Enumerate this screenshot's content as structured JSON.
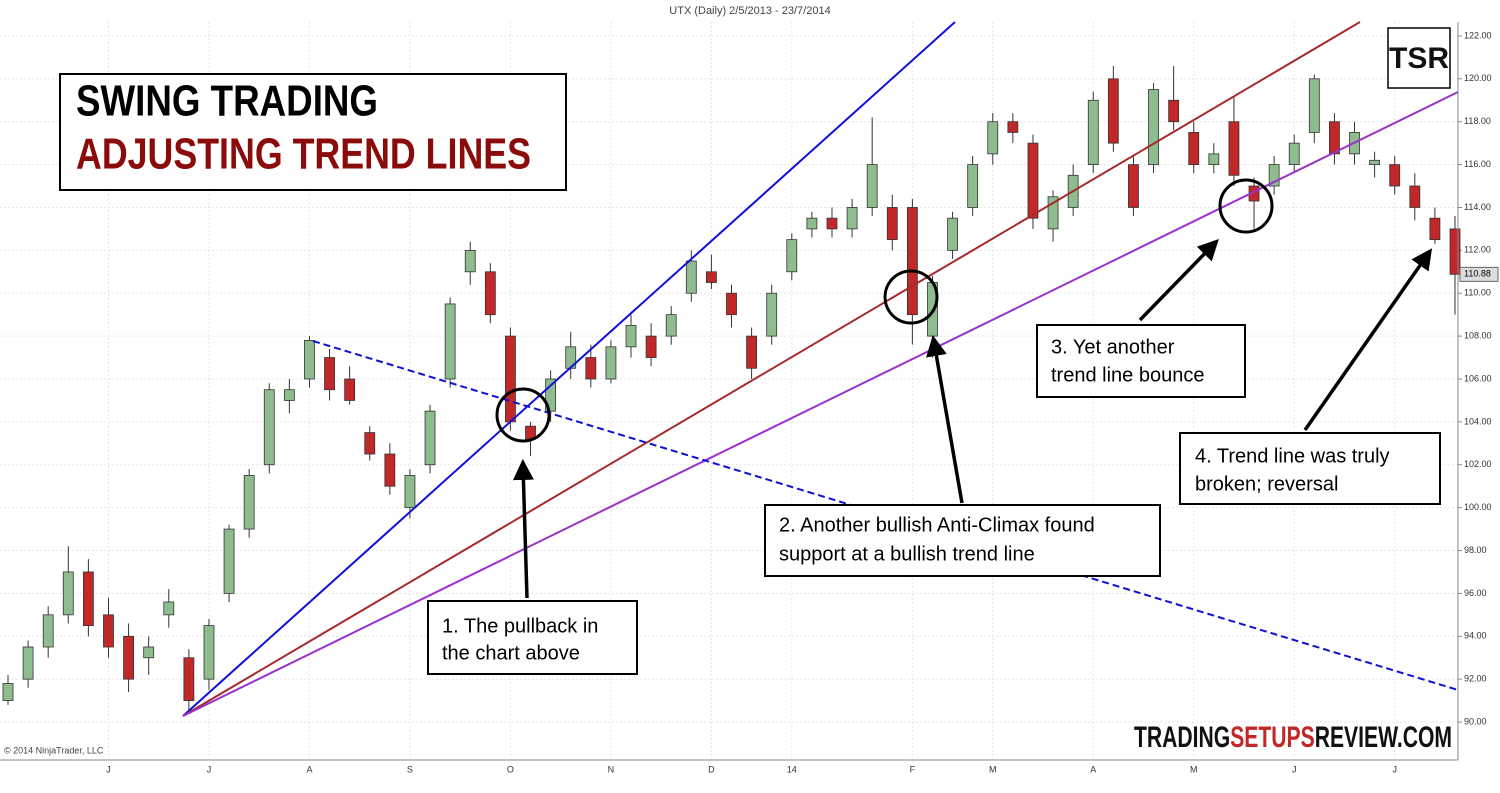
{
  "chart_data": {
    "type": "candlestick",
    "title": "UTX (Daily)  2/5/2013 - 23/7/2014",
    "headline": [
      "SWING TRADING",
      "ADJUSTING TREND LINES"
    ],
    "logo": "TSR",
    "copyright": "© 2014 NinjaTrader, LLC",
    "site": [
      {
        "text": "TRADING",
        "color": "#111111"
      },
      {
        "text": "SETUPS",
        "color": "#c0282a"
      },
      {
        "text": "REVIEW",
        "color": "#111111"
      },
      {
        "text": ".COM",
        "color": "#111111"
      }
    ],
    "annotations": [
      [
        "1. The pullback in",
        "the chart above"
      ],
      [
        "2. Another bullish Anti-Climax found",
        "support at a bullish trend line"
      ],
      [
        "3. Yet another",
        "trend line bounce"
      ],
      [
        "4. Trend line was truly",
        "broken; reversal"
      ]
    ],
    "categories": [
      null,
      null,
      null,
      null,
      null,
      "J",
      null,
      null,
      null,
      null,
      "J",
      null,
      null,
      null,
      null,
      "A",
      null,
      null,
      null,
      null,
      "S",
      null,
      null,
      null,
      null,
      "O",
      null,
      null,
      null,
      null,
      "N",
      null,
      null,
      null,
      null,
      "D",
      null,
      null,
      null,
      "14",
      null,
      null,
      null,
      null,
      null,
      "F",
      null,
      null,
      null,
      "M",
      null,
      null,
      null,
      null,
      "A",
      null,
      null,
      null,
      null,
      "M",
      null,
      null,
      null,
      null,
      "J",
      null,
      null,
      null,
      null,
      "J",
      null,
      null,
      null
    ],
    "open": [
      91,
      92,
      93.5,
      95,
      97,
      95,
      94,
      93,
      95,
      93,
      92,
      96,
      99,
      102,
      105,
      106,
      107,
      106,
      103.5,
      102.5,
      100,
      102,
      106,
      111,
      111,
      108,
      103.8,
      104.5,
      106.5,
      107,
      106,
      107.5,
      108,
      108,
      110,
      111,
      110,
      108,
      108,
      111,
      113,
      113.5,
      113,
      114,
      114,
      114,
      108,
      112,
      114,
      116.5,
      118,
      117,
      113,
      114,
      116,
      120,
      116,
      116,
      119,
      117.5,
      116,
      118,
      115,
      115,
      116,
      117.5,
      118,
      116.5,
      116,
      116,
      115,
      113.5,
      113
    ],
    "high": [
      92.2,
      93.8,
      95.4,
      98.2,
      97.6,
      95.8,
      94.6,
      94,
      96.2,
      93.4,
      94.8,
      99.2,
      101.8,
      105.8,
      106,
      108,
      107.4,
      106.6,
      103.8,
      103,
      101.8,
      104.8,
      109.8,
      112.4,
      111.4,
      108.4,
      104,
      106.4,
      108.2,
      107.6,
      107.8,
      109,
      108.6,
      109.4,
      112,
      111.8,
      110.4,
      108.4,
      110.4,
      112.8,
      113.8,
      114,
      114.4,
      118.2,
      114.6,
      114.4,
      110.8,
      113.8,
      116.4,
      118.4,
      118.4,
      117.4,
      114.8,
      116,
      119.4,
      120.6,
      116.4,
      119.8,
      120.6,
      118,
      117,
      119.2,
      115.4,
      116.4,
      117.4,
      120.2,
      118.4,
      118,
      116.6,
      116.4,
      115.6,
      114,
      113.6
    ],
    "low": [
      90.8,
      91.6,
      93,
      94.6,
      94,
      93,
      91.4,
      92.2,
      94.4,
      90.4,
      91.5,
      95.6,
      98.6,
      101.6,
      104.4,
      105.6,
      105,
      104.8,
      102.2,
      100.6,
      99.5,
      101.6,
      105.6,
      110.4,
      108.6,
      103.6,
      102.4,
      104,
      106,
      105.6,
      105.8,
      107,
      106.6,
      107.6,
      109.6,
      110.2,
      108.4,
      106,
      107.6,
      110.6,
      112.6,
      112.6,
      112.6,
      113.6,
      112,
      107.6,
      107,
      111.6,
      113.6,
      116,
      117,
      113,
      112.4,
      113.6,
      115.6,
      116.6,
      113.6,
      115.6,
      117.6,
      115.6,
      115.6,
      115,
      113,
      114.6,
      115.6,
      117,
      116,
      116,
      115.4,
      114.6,
      113.4,
      112.3,
      109
    ],
    "close": [
      91.8,
      93.5,
      95,
      97,
      94.5,
      93.5,
      92,
      93.5,
      95.6,
      91,
      94.5,
      99,
      101.5,
      105.5,
      105.5,
      107.8,
      105.5,
      105,
      102.5,
      101,
      101.5,
      104.5,
      109.5,
      112,
      109,
      104,
      103.2,
      106,
      107.5,
      106,
      107.5,
      108.5,
      107,
      109,
      111.5,
      110.5,
      109,
      106.5,
      110,
      112.5,
      113.5,
      113,
      114,
      116,
      112.5,
      109,
      110.5,
      113.5,
      116,
      118,
      117.5,
      113.5,
      114.5,
      115.5,
      119,
      117,
      114,
      119.5,
      118,
      116,
      116.5,
      115.5,
      114.3,
      116,
      117,
      120,
      116.5,
      117.5,
      116.2,
      115,
      114,
      112.5,
      110.88
    ],
    "up_color": "#8fbc8f",
    "down_color": "#c0282a",
    "last_price": 110.88,
    "ylim": [
      88.23,
      122.65
    ],
    "yticks": [
      {
        "value": 90,
        "label": "90.00"
      },
      {
        "value": 92,
        "label": "92.00"
      },
      {
        "value": 94,
        "label": "94.00"
      },
      {
        "value": 96,
        "label": "96.00"
      },
      {
        "value": 98,
        "label": "98.00"
      },
      {
        "value": 100,
        "label": "100.00"
      },
      {
        "value": 102,
        "label": "102.00"
      },
      {
        "value": 104,
        "label": "104.00"
      },
      {
        "value": 106,
        "label": "106.00"
      },
      {
        "value": 108,
        "label": "108.00"
      },
      {
        "value": 110,
        "label": "110.00"
      },
      {
        "value": 112,
        "label": "112.00"
      },
      {
        "value": 114,
        "label": "114.00"
      },
      {
        "value": 116,
        "label": "116.00"
      },
      {
        "value": 118,
        "label": "118.00"
      },
      {
        "value": 120,
        "label": "120.00"
      },
      {
        "value": 122,
        "label": "122.00"
      }
    ],
    "grid": true
  }
}
